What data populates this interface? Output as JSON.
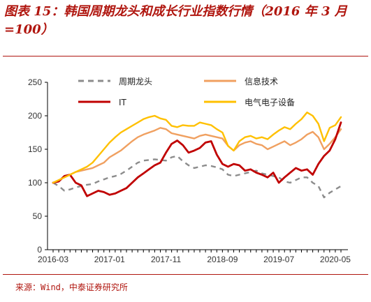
{
  "title": "图表 15：韩国周期龙头和成长行业指数行情（2016 年 3 月=100）",
  "source": "来源：Wind，中泰证券研究所",
  "colors": {
    "accent": "#b0160f",
    "周期龙头": "#8c8c8c",
    "信息技术": "#f0a060",
    "IT": "#c00000",
    "电气电子设备": "#ffc000"
  },
  "chart_data": {
    "type": "line",
    "title": "韩国周期龙头和成长行业指数行情（2016 年 3 月=100）",
    "xlabel": "",
    "ylabel": "",
    "ylim": [
      0,
      250
    ],
    "yticks": [
      0,
      50,
      100,
      150,
      200,
      250
    ],
    "xticks": [
      "2016-03",
      "2017-01",
      "2017-11",
      "2018-09",
      "2019-07",
      "2020-05"
    ],
    "grid": false,
    "legend_position": "top",
    "x": [
      "2016-03",
      "2016-04",
      "2016-05",
      "2016-06",
      "2016-07",
      "2016-08",
      "2016-09",
      "2016-10",
      "2016-11",
      "2016-12",
      "2017-01",
      "2017-02",
      "2017-03",
      "2017-04",
      "2017-05",
      "2017-06",
      "2017-07",
      "2017-08",
      "2017-09",
      "2017-10",
      "2017-11",
      "2017-12",
      "2018-01",
      "2018-02",
      "2018-03",
      "2018-04",
      "2018-05",
      "2018-06",
      "2018-07",
      "2018-08",
      "2018-09",
      "2018-10",
      "2018-11",
      "2018-12",
      "2019-01",
      "2019-02",
      "2019-03",
      "2019-04",
      "2019-05",
      "2019-06",
      "2019-07",
      "2019-08",
      "2019-09",
      "2019-10",
      "2019-11",
      "2019-12",
      "2020-01",
      "2020-02",
      "2020-03",
      "2020-04",
      "2020-05",
      "2020-06"
    ],
    "series": [
      {
        "name": "周期龙头",
        "style": "dashed",
        "values": [
          100,
          95,
          88,
          90,
          93,
          95,
          97,
          98,
          102,
          105,
          108,
          110,
          113,
          118,
          124,
          130,
          133,
          134,
          135,
          134,
          133,
          138,
          140,
          132,
          126,
          122,
          124,
          126,
          125,
          123,
          120,
          112,
          110,
          112,
          114,
          116,
          118,
          114,
          112,
          110,
          108,
          102,
          100,
          104,
          108,
          108,
          100,
          95,
          78,
          85,
          90,
          95
        ]
      },
      {
        "name": "信息技术",
        "style": "solid",
        "values": [
          100,
          104,
          108,
          112,
          116,
          118,
          120,
          122,
          126,
          130,
          138,
          143,
          148,
          155,
          162,
          168,
          172,
          175,
          178,
          182,
          180,
          174,
          172,
          170,
          168,
          166,
          170,
          172,
          170,
          168,
          166,
          155,
          148,
          156,
          160,
          162,
          158,
          156,
          150,
          154,
          158,
          162,
          156,
          160,
          165,
          172,
          176,
          168,
          150,
          158,
          168,
          180
        ]
      },
      {
        "name": "IT",
        "style": "solid",
        "values": [
          100,
          102,
          110,
          112,
          100,
          96,
          80,
          84,
          88,
          86,
          82,
          84,
          88,
          92,
          100,
          108,
          114,
          120,
          126,
          130,
          145,
          158,
          163,
          156,
          145,
          148,
          152,
          160,
          162,
          142,
          128,
          124,
          128,
          126,
          118,
          120,
          115,
          112,
          108,
          115,
          100,
          108,
          115,
          122,
          118,
          120,
          112,
          128,
          140,
          148,
          165,
          190
        ]
      },
      {
        "name": "电气电子设备",
        "style": "solid",
        "values": [
          100,
          104,
          108,
          112,
          116,
          120,
          124,
          130,
          140,
          150,
          160,
          168,
          175,
          180,
          185,
          190,
          195,
          198,
          200,
          196,
          194,
          185,
          183,
          186,
          185,
          185,
          190,
          188,
          186,
          180,
          175,
          155,
          148,
          162,
          168,
          170,
          166,
          168,
          165,
          172,
          178,
          183,
          180,
          188,
          195,
          205,
          200,
          188,
          162,
          182,
          186,
          198
        ]
      }
    ]
  }
}
